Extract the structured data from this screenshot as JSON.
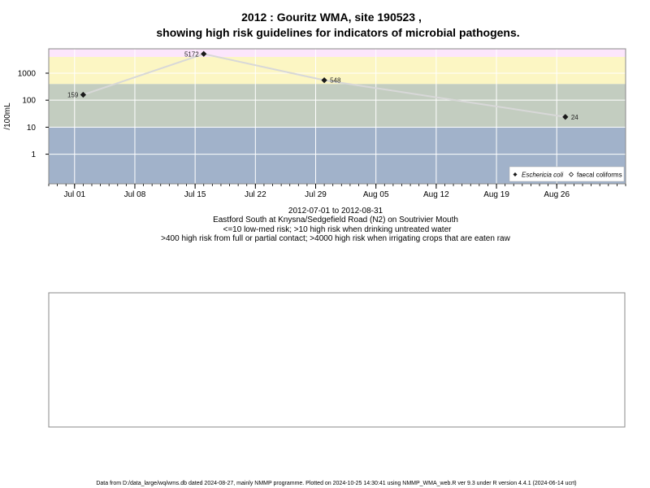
{
  "chart_data": {
    "type": "scatter",
    "title_line1": "2012 : Gouritz WMA, site 190523 ,",
    "title_line2": "showing high risk guidelines for indicators of microbial pathogens.",
    "ylabel": "/100mL",
    "y_scale": "log",
    "y_ticks": [
      {
        "value": 1,
        "label": "1"
      },
      {
        "value": 10,
        "label": "10"
      },
      {
        "value": 100,
        "label": "100"
      },
      {
        "value": 1000,
        "label": "1000"
      }
    ],
    "x_ticks": [
      {
        "date": "2012-07-01",
        "label": "Jul 01"
      },
      {
        "date": "2012-07-08",
        "label": "Jul 08"
      },
      {
        "date": "2012-07-15",
        "label": "Jul 15"
      },
      {
        "date": "2012-07-22",
        "label": "Jul 22"
      },
      {
        "date": "2012-07-29",
        "label": "Jul 29"
      },
      {
        "date": "2012-08-05",
        "label": "Aug 05"
      },
      {
        "date": "2012-08-12",
        "label": "Aug 12"
      },
      {
        "date": "2012-08-19",
        "label": "Aug 19"
      },
      {
        "date": "2012-08-26",
        "label": "Aug 26"
      }
    ],
    "xlim": [
      "2012-06-28",
      "2012-09-03"
    ],
    "ylim": [
      0.08,
      8000
    ],
    "risk_bands": [
      {
        "from": 0.01,
        "to": 10,
        "color": "#a1b2ca"
      },
      {
        "from": 10,
        "to": 400,
        "color": "#c3cdc0"
      },
      {
        "from": 400,
        "to": 4000,
        "color": "#fcf6c3"
      },
      {
        "from": 4000,
        "to": 100000,
        "color": "#fce6fc"
      }
    ],
    "series": [
      {
        "name": "Eschericia coli",
        "marker": "filled-diamond",
        "points": [
          {
            "date": "2012-07-02",
            "value": 159,
            "label": "159"
          },
          {
            "date": "2012-07-16",
            "value": 5172,
            "label": "5172"
          },
          {
            "date": "2012-07-30",
            "value": 548,
            "label": "548"
          },
          {
            "date": "2012-08-27",
            "value": 24,
            "label": "24"
          }
        ]
      },
      {
        "name": "faecal coliforms",
        "marker": "open-diamond",
        "points": []
      }
    ],
    "legend_position": "bottom-right",
    "grid": true,
    "colors": {
      "line": "#d8d8d8",
      "marker": "#1a1a1a",
      "grid": "#ffffff"
    }
  },
  "subtitle": {
    "line1": "2012-07-01 to 2012-08-31",
    "line2": "Eastford South at Knysna/Sedgefield Road (N2) on Soutrivier Mouth",
    "line3": "<=10 low-med risk; >10 high risk when drinking untreated water",
    "line4": ">400 high risk from full or partial contact; >4000 high risk when irrigating crops that are eaten raw"
  },
  "footer": "Data from D:/data_large/wq/wms.db dated 2024-08-27, mainly NMMP programme. Plotted on 2024-10-25 14:30:41 using NMMP_WMA_web.R ver 9.3 under R version 4.4.1 (2024-06-14 ucrt)"
}
